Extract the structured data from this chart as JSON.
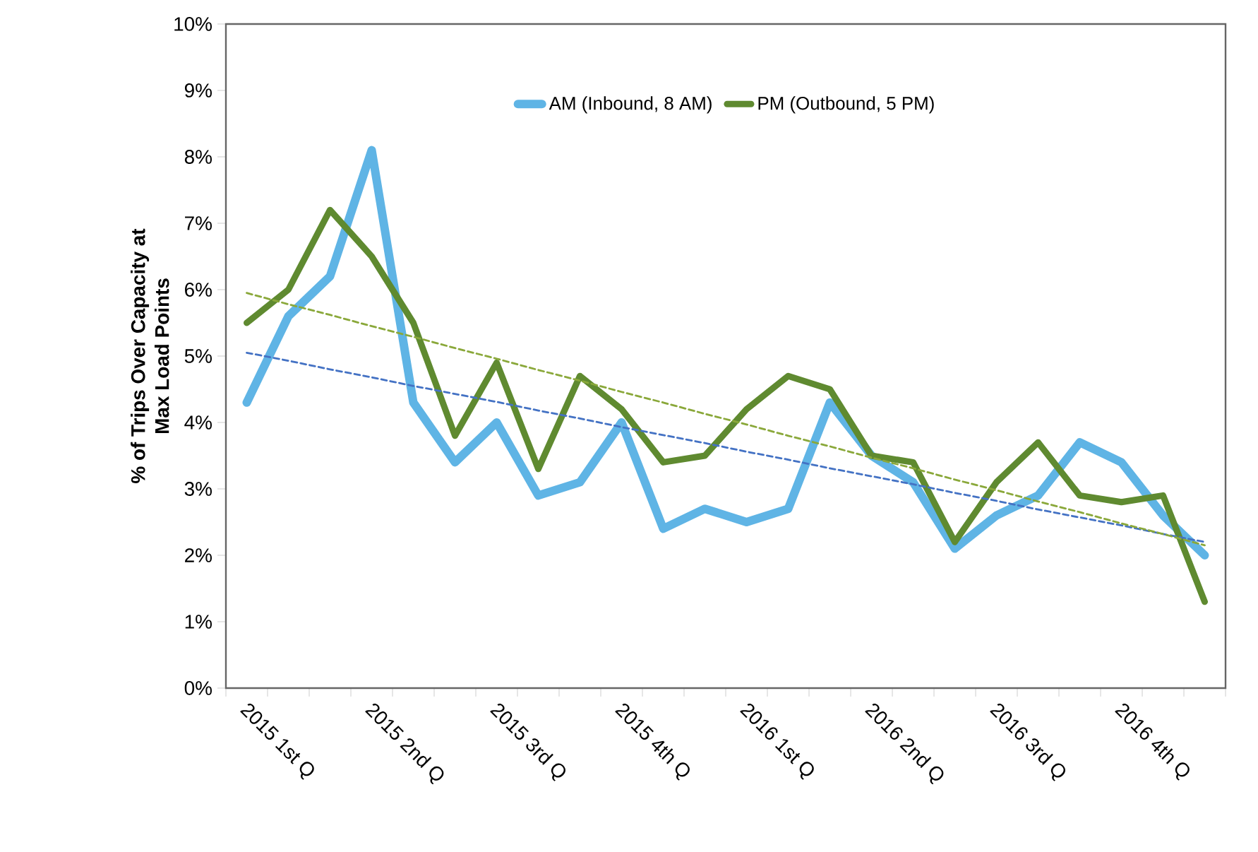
{
  "chart_data": {
    "type": "line",
    "ylabel": "% of Trips Over Capacity at Max Load Points",
    "categories": [
      "2015 1st Q",
      null,
      null,
      "2015 2nd Q",
      null,
      null,
      "2015 3rd Q",
      null,
      null,
      "2015 4th Q",
      null,
      null,
      "2016 1st Q",
      null,
      null,
      "2016 2nd Q",
      null,
      null,
      "2016 3rd Q",
      null,
      null,
      "2016 4th Q",
      null,
      null
    ],
    "series": [
      {
        "name": "AM (Inbound, 8 AM)",
        "color": "#5fb4e5",
        "values": [
          4.3,
          5.6,
          6.2,
          8.1,
          4.3,
          3.4,
          4.0,
          2.9,
          3.1,
          4.0,
          2.4,
          2.7,
          2.5,
          2.7,
          4.3,
          3.5,
          3.1,
          2.1,
          2.6,
          2.9,
          3.7,
          3.4,
          2.6,
          2.0
        ]
      },
      {
        "name": "PM (Outbound, 5 PM)",
        "color": "#5f8a30",
        "values": [
          5.5,
          6.0,
          7.2,
          6.5,
          5.5,
          3.8,
          4.9,
          3.3,
          4.7,
          4.2,
          3.4,
          3.5,
          4.2,
          4.7,
          4.5,
          3.5,
          3.4,
          2.2,
          3.1,
          3.7,
          2.9,
          2.8,
          2.9,
          1.3
        ]
      },
      {
        "color": "#4472c4",
        "line_style": "dashed",
        "values": [
          5.05,
          4.93,
          4.8,
          4.68,
          4.55,
          4.43,
          4.31,
          4.18,
          4.06,
          3.93,
          3.81,
          3.69,
          3.56,
          3.44,
          3.31,
          3.19,
          3.07,
          2.94,
          2.82,
          2.69,
          2.57,
          2.45,
          2.32,
          2.2
        ]
      },
      {
        "color": "#8aa83a",
        "line_style": "dashed",
        "values": [
          5.95,
          5.78,
          5.62,
          5.45,
          5.29,
          5.12,
          4.96,
          4.79,
          4.63,
          4.46,
          4.3,
          4.13,
          3.97,
          3.8,
          3.64,
          3.47,
          3.31,
          3.14,
          2.98,
          2.81,
          2.65,
          2.48,
          2.32,
          2.15
        ]
      }
    ],
    "ylim": [
      0,
      10
    ],
    "yticks": [
      {
        "value": 0,
        "label": "0%"
      },
      {
        "value": 1,
        "label": "1%"
      },
      {
        "value": 2,
        "label": "2%"
      },
      {
        "value": 3,
        "label": "3%"
      },
      {
        "value": 4,
        "label": "4%"
      },
      {
        "value": 5,
        "label": "5%"
      },
      {
        "value": 6,
        "label": "6%"
      },
      {
        "value": 7,
        "label": "7%"
      },
      {
        "value": 8,
        "label": "8%"
      },
      {
        "value": 9,
        "label": "9%"
      },
      {
        "value": 10,
        "label": "10%"
      }
    ],
    "grid": false,
    "legend": "top",
    "marker": "none",
    "line_style": "solid"
  }
}
